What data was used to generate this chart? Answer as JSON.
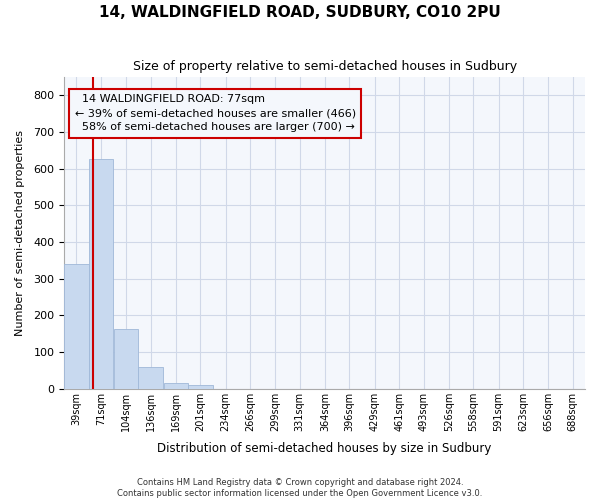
{
  "title": "14, WALDINGFIELD ROAD, SUDBURY, CO10 2PU",
  "subtitle": "Size of property relative to semi-detached houses in Sudbury",
  "xlabel": "Distribution of semi-detached houses by size in Sudbury",
  "ylabel": "Number of semi-detached properties",
  "footer_line1": "Contains HM Land Registry data © Crown copyright and database right 2024.",
  "footer_line2": "Contains public sector information licensed under the Open Government Licence v3.0.",
  "property_size": 77,
  "property_label": "14 WALDINGFIELD ROAD: 77sqm",
  "smaller_pct": "39%",
  "smaller_count": 466,
  "larger_pct": "58%",
  "larger_count": 700,
  "bins": [
    39,
    71,
    104,
    136,
    169,
    201,
    234,
    266,
    299,
    331,
    364,
    396,
    429,
    461,
    493,
    526,
    558,
    591,
    623,
    656,
    688
  ],
  "counts": [
    340,
    625,
    163,
    60,
    15,
    10,
    0,
    0,
    0,
    0,
    0,
    0,
    0,
    0,
    0,
    0,
    0,
    0,
    0,
    0,
    0
  ],
  "bar_color": "#c8d9ef",
  "bar_edge_color": "#a0b8d8",
  "red_line_color": "#cc0000",
  "grid_color": "#d0d8e8",
  "background_color": "#ffffff",
  "plot_bg_color": "#f4f7fc",
  "ylim": [
    0,
    850
  ],
  "yticks": [
    0,
    100,
    200,
    300,
    400,
    500,
    600,
    700,
    800
  ],
  "title_fontsize": 11,
  "subtitle_fontsize": 9,
  "annotation_fontsize": 8
}
